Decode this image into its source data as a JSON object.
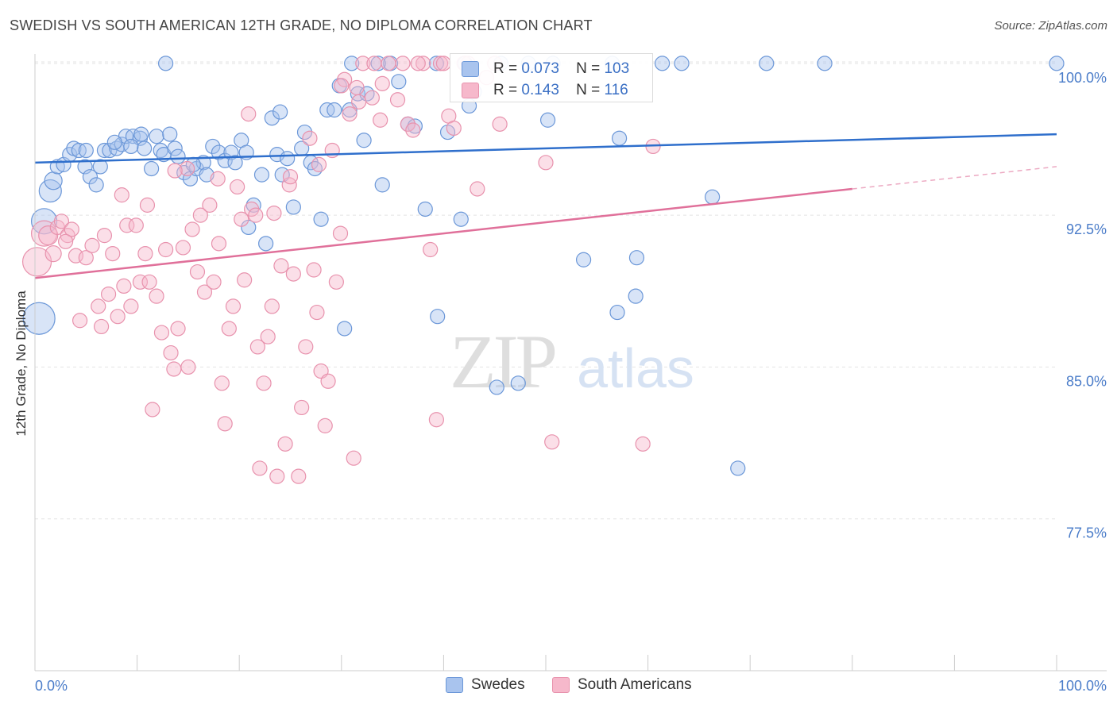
{
  "title": "SWEDISH VS SOUTH AMERICAN 12TH GRADE, NO DIPLOMA CORRELATION CHART",
  "source": "Source: ZipAtlas.com",
  "watermark": {
    "zip": "ZIP",
    "atlas": "atlas"
  },
  "colors": {
    "blue_fill": "#a9c4ee",
    "blue_stroke": "#6b97d8",
    "blue_line": "#2f6fcc",
    "pink_fill": "#f6b8cb",
    "pink_stroke": "#e892ad",
    "pink_line": "#e0709a",
    "axis_text": "#4a7cc9",
    "grid": "#e4e4e4"
  },
  "stats": {
    "r_label": "R =",
    "n_label": "N =",
    "blue": {
      "r": "0.073",
      "n": "103"
    },
    "pink": {
      "r": "0.143",
      "n": "116"
    }
  },
  "legend": {
    "blue": "Swedes",
    "pink": "South Americans"
  },
  "chart_data": {
    "type": "scatter",
    "title": "SWEDISH VS SOUTH AMERICAN 12TH GRADE, NO DIPLOMA CORRELATION CHART",
    "ylabel": "12th Grade, No Diploma",
    "xlabel": "",
    "x_tick_labels": [
      "0.0%",
      "100.0%"
    ],
    "y_ticks": [
      77.5,
      85.0,
      92.5,
      100.0
    ],
    "y_tick_labels": [
      "77.5%",
      "85.0%",
      "92.5%",
      "100.0%"
    ],
    "xlim": [
      0,
      100
    ],
    "ylim": [
      70.0,
      100.7
    ],
    "grid": true,
    "series": [
      {
        "name": "Swedes",
        "color": "#a9c4ee",
        "trend": {
          "x": [
            0,
            100
          ],
          "y": [
            95.1,
            96.5
          ]
        },
        "points": [
          [
            0.9,
            92.2,
            16
          ],
          [
            0.4,
            87.4,
            20
          ],
          [
            1.5,
            93.7,
            14
          ],
          [
            1.8,
            94.2,
            11
          ],
          [
            2.2,
            94.9,
            9
          ],
          [
            2.8,
            95.0,
            9
          ],
          [
            3.4,
            95.5,
            9
          ],
          [
            3.8,
            95.8,
            9
          ],
          [
            4.3,
            95.7,
            9
          ],
          [
            4.9,
            94.9,
            9
          ],
          [
            5.4,
            94.4,
            9
          ],
          [
            6.0,
            94.0,
            9
          ],
          [
            6.4,
            94.9,
            9
          ],
          [
            6.8,
            95.7,
            9
          ],
          [
            7.3,
            95.7,
            9
          ],
          [
            8.0,
            95.8,
            9
          ],
          [
            8.5,
            96.0,
            9
          ],
          [
            8.9,
            96.4,
            9
          ],
          [
            9.6,
            96.4,
            9
          ],
          [
            10.3,
            96.3,
            9
          ],
          [
            10.4,
            96.5,
            9
          ],
          [
            10.7,
            95.8,
            9
          ],
          [
            11.4,
            94.8,
            9
          ],
          [
            11.9,
            96.4,
            9
          ],
          [
            12.3,
            95.7,
            9
          ],
          [
            12.6,
            95.5,
            9
          ],
          [
            13.2,
            96.5,
            9
          ],
          [
            13.7,
            95.8,
            9
          ],
          [
            14.0,
            95.4,
            9
          ],
          [
            14.6,
            94.6,
            9
          ],
          [
            15.2,
            94.3,
            9
          ],
          [
            15.8,
            94.8,
            9
          ],
          [
            16.5,
            95.1,
            9
          ],
          [
            17.4,
            95.9,
            9
          ],
          [
            18.0,
            95.6,
            9
          ],
          [
            18.6,
            95.2,
            9
          ],
          [
            19.2,
            95.6,
            9
          ],
          [
            19.6,
            95.1,
            9
          ],
          [
            20.2,
            96.2,
            9
          ],
          [
            20.9,
            91.9,
            9
          ],
          [
            21.4,
            93.0,
            9
          ],
          [
            22.2,
            94.5,
            9
          ],
          [
            22.6,
            91.1,
            9
          ],
          [
            23.2,
            97.3,
            9
          ],
          [
            23.7,
            95.5,
            9
          ],
          [
            24.2,
            94.5,
            9
          ],
          [
            24.7,
            95.3,
            9
          ],
          [
            25.3,
            92.9,
            9
          ],
          [
            26.1,
            95.8,
            9
          ],
          [
            26.4,
            96.6,
            9
          ],
          [
            27.0,
            95.1,
            9
          ],
          [
            27.4,
            94.8,
            9
          ],
          [
            28.0,
            92.3,
            9
          ],
          [
            28.6,
            97.7,
            9
          ],
          [
            29.3,
            97.7,
            9
          ],
          [
            29.8,
            98.9,
            9
          ],
          [
            30.3,
            86.9,
            9
          ],
          [
            30.8,
            97.7,
            9
          ],
          [
            31.6,
            98.5,
            9
          ],
          [
            32.2,
            96.2,
            9
          ],
          [
            32.5,
            98.5,
            9
          ],
          [
            34.0,
            94.0,
            9
          ],
          [
            34.8,
            100.0,
            9
          ],
          [
            35.6,
            99.1,
            9
          ],
          [
            36.5,
            97.0,
            9
          ],
          [
            37.2,
            96.9,
            9
          ],
          [
            38.2,
            92.8,
            9
          ],
          [
            39.3,
            100.0,
            9
          ],
          [
            39.4,
            87.5,
            9
          ],
          [
            40.4,
            96.6,
            9
          ],
          [
            41.7,
            92.3,
            9
          ],
          [
            42.1,
            100.0,
            9
          ],
          [
            42.5,
            97.9,
            9
          ],
          [
            45.2,
            84.0,
            9
          ],
          [
            47.3,
            84.2,
            9
          ],
          [
            48.3,
            100.0,
            9
          ],
          [
            50.2,
            97.2,
            9
          ],
          [
            50.7,
            100.0,
            9
          ],
          [
            53.7,
            90.3,
            9
          ],
          [
            56.5,
            100.0,
            9
          ],
          [
            57.0,
            87.7,
            9
          ],
          [
            57.2,
            96.3,
            9
          ],
          [
            58.8,
            88.5,
            9
          ],
          [
            58.9,
            90.4,
            9
          ],
          [
            61.4,
            100.0,
            9
          ],
          [
            63.3,
            100.0,
            9
          ],
          [
            66.3,
            93.4,
            9
          ],
          [
            68.8,
            80.0,
            9
          ],
          [
            71.6,
            100.0,
            9
          ],
          [
            77.3,
            100.0,
            9
          ],
          [
            100.0,
            100.0,
            9
          ],
          [
            12.8,
            100.0,
            9
          ],
          [
            5.0,
            95.7,
            9
          ],
          [
            7.8,
            96.1,
            9
          ],
          [
            9.4,
            95.9,
            9
          ],
          [
            16.8,
            94.5,
            9
          ],
          [
            24.0,
            97.6,
            9
          ],
          [
            15.5,
            95.0,
            9
          ],
          [
            33.6,
            100.0,
            9
          ],
          [
            43.0,
            98.6,
            9
          ],
          [
            20.7,
            95.6,
            9
          ],
          [
            31.0,
            100.0,
            9
          ],
          [
            45.6,
            100.0,
            9
          ]
        ]
      },
      {
        "name": "South Americans",
        "color": "#f6b8cb",
        "trend": {
          "x": [
            0,
            80
          ],
          "y": [
            89.4,
            93.8
          ]
        },
        "trend_extension": {
          "x": [
            80,
            100
          ],
          "y": [
            93.8,
            94.9
          ]
        },
        "points": [
          [
            0.2,
            90.2,
            18
          ],
          [
            0.9,
            91.6,
            16
          ],
          [
            1.3,
            91.5,
            12
          ],
          [
            1.8,
            90.6,
            10
          ],
          [
            2.2,
            91.9,
            9
          ],
          [
            2.6,
            92.2,
            9
          ],
          [
            3.2,
            91.5,
            9
          ],
          [
            3.6,
            91.8,
            9
          ],
          [
            4.0,
            90.5,
            9
          ],
          [
            4.4,
            87.3,
            9
          ],
          [
            5.0,
            90.4,
            9
          ],
          [
            5.6,
            91.0,
            9
          ],
          [
            6.2,
            88.0,
            9
          ],
          [
            6.8,
            91.5,
            9
          ],
          [
            7.2,
            88.6,
            9
          ],
          [
            7.6,
            90.6,
            9
          ],
          [
            8.1,
            87.5,
            9
          ],
          [
            8.5,
            93.5,
            9
          ],
          [
            9.0,
            92.0,
            9
          ],
          [
            9.4,
            88.0,
            9
          ],
          [
            9.9,
            92.0,
            9
          ],
          [
            10.3,
            89.2,
            9
          ],
          [
            10.8,
            90.6,
            9
          ],
          [
            11.2,
            89.2,
            9
          ],
          [
            11.5,
            82.9,
            9
          ],
          [
            11.9,
            88.5,
            9
          ],
          [
            12.4,
            86.7,
            9
          ],
          [
            12.8,
            90.8,
            9
          ],
          [
            13.3,
            85.7,
            9
          ],
          [
            13.6,
            84.9,
            9
          ],
          [
            14.0,
            86.9,
            9
          ],
          [
            14.5,
            90.9,
            9
          ],
          [
            14.9,
            94.8,
            9
          ],
          [
            15.4,
            91.8,
            9
          ],
          [
            15.9,
            89.7,
            9
          ],
          [
            16.2,
            92.5,
            9
          ],
          [
            16.6,
            88.7,
            9
          ],
          [
            17.1,
            93.0,
            9
          ],
          [
            17.5,
            89.2,
            9
          ],
          [
            17.9,
            94.3,
            9
          ],
          [
            18.3,
            84.2,
            9
          ],
          [
            18.6,
            82.2,
            9
          ],
          [
            19.0,
            86.9,
            9
          ],
          [
            19.4,
            88.0,
            9
          ],
          [
            19.8,
            93.9,
            9
          ],
          [
            20.2,
            92.3,
            9
          ],
          [
            20.5,
            89.3,
            9
          ],
          [
            20.9,
            97.5,
            9
          ],
          [
            21.2,
            92.8,
            9
          ],
          [
            21.6,
            92.5,
            9
          ],
          [
            22.0,
            80.0,
            9
          ],
          [
            22.4,
            84.2,
            9
          ],
          [
            22.8,
            86.5,
            9
          ],
          [
            23.2,
            88.0,
            9
          ],
          [
            23.7,
            79.6,
            9
          ],
          [
            24.1,
            90.0,
            9
          ],
          [
            24.5,
            81.2,
            9
          ],
          [
            24.9,
            94.0,
            9
          ],
          [
            25.3,
            89.6,
            9
          ],
          [
            25.8,
            79.6,
            9
          ],
          [
            26.1,
            83.0,
            9
          ],
          [
            26.5,
            86.0,
            9
          ],
          [
            26.9,
            96.3,
            9
          ],
          [
            27.3,
            89.8,
            9
          ],
          [
            27.6,
            87.7,
            9
          ],
          [
            28.0,
            84.8,
            9
          ],
          [
            28.4,
            82.1,
            9
          ],
          [
            28.7,
            84.3,
            9
          ],
          [
            29.1,
            95.7,
            9
          ],
          [
            29.5,
            89.2,
            9
          ],
          [
            29.9,
            91.6,
            9
          ],
          [
            30.3,
            99.2,
            9
          ],
          [
            30.8,
            97.5,
            9
          ],
          [
            31.2,
            80.5,
            9
          ],
          [
            31.7,
            98.1,
            9
          ],
          [
            32.1,
            100.0,
            9
          ],
          [
            33.0,
            98.3,
            9
          ],
          [
            33.8,
            97.2,
            9
          ],
          [
            34.6,
            100.0,
            9
          ],
          [
            35.5,
            98.2,
            9
          ],
          [
            36.5,
            97.0,
            9
          ],
          [
            37.0,
            96.7,
            9
          ],
          [
            38.0,
            100.0,
            9
          ],
          [
            38.7,
            90.8,
            9
          ],
          [
            39.3,
            82.4,
            9
          ],
          [
            39.7,
            100.0,
            9
          ],
          [
            40.5,
            97.4,
            9
          ],
          [
            41.0,
            96.8,
            9
          ],
          [
            42.0,
            100.0,
            9
          ],
          [
            42.4,
            100.0,
            9
          ],
          [
            43.3,
            93.8,
            9
          ],
          [
            44.2,
            99.3,
            9
          ],
          [
            45.0,
            100.0,
            9
          ],
          [
            50.0,
            95.1,
            9
          ],
          [
            50.6,
            81.3,
            9
          ],
          [
            59.5,
            81.2,
            9
          ],
          [
            60.5,
            95.9,
            9
          ],
          [
            13.7,
            94.7,
            9
          ],
          [
            18.0,
            91.1,
            9
          ],
          [
            23.4,
            92.6,
            9
          ],
          [
            25.0,
            94.4,
            9
          ],
          [
            27.8,
            95.0,
            9
          ],
          [
            30.0,
            98.9,
            9
          ],
          [
            31.5,
            98.8,
            9
          ],
          [
            33.2,
            100.0,
            9
          ],
          [
            34.0,
            99.0,
            9
          ],
          [
            36.0,
            100.0,
            9
          ],
          [
            37.5,
            100.0,
            9
          ],
          [
            40.0,
            100.0,
            9
          ],
          [
            45.5,
            97.0,
            9
          ],
          [
            3.0,
            91.2,
            9
          ],
          [
            6.5,
            87.0,
            9
          ],
          [
            8.7,
            89.0,
            9
          ],
          [
            11.0,
            93.0,
            9
          ],
          [
            15.0,
            85.0,
            9
          ],
          [
            21.8,
            86.0,
            9
          ]
        ]
      }
    ]
  }
}
